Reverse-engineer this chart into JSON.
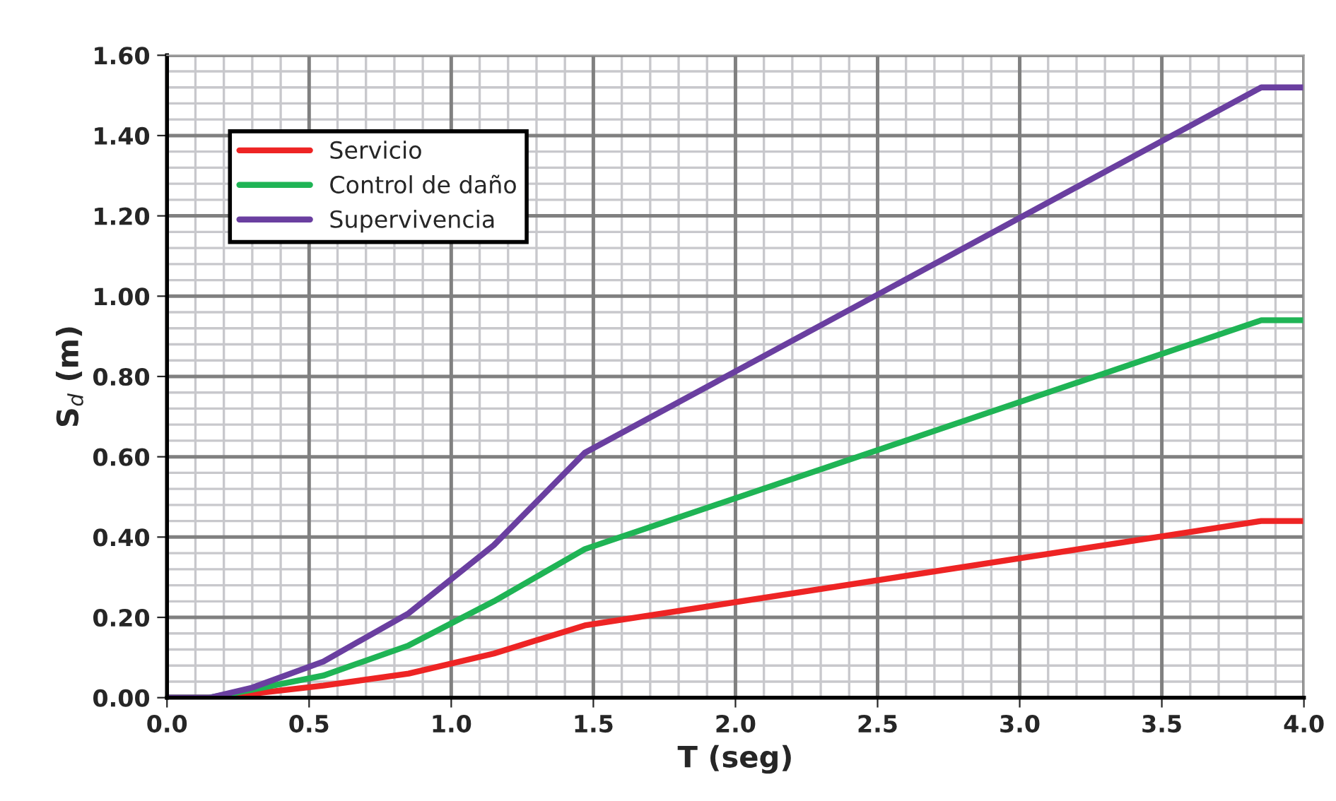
{
  "chart_data": {
    "type": "line",
    "xlabel": "T (seg)",
    "ylabel": "S$_{d}$ (m)",
    "xlim": [
      0,
      4
    ],
    "ylim": [
      0,
      1.6
    ],
    "xticks": [
      {
        "value": 0,
        "label": "0.0"
      },
      {
        "value": 0.5,
        "label": "0.5"
      },
      {
        "value": 1,
        "label": "1.0"
      },
      {
        "value": 1.5,
        "label": "1.5"
      },
      {
        "value": 2,
        "label": "2.0"
      },
      {
        "value": 2.5,
        "label": "2.5"
      },
      {
        "value": 3,
        "label": "3.0"
      },
      {
        "value": 3.5,
        "label": "3.5"
      },
      {
        "value": 4,
        "label": "4.0"
      }
    ],
    "yticks": [
      {
        "value": 0,
        "label": "0.00"
      },
      {
        "value": 0.2,
        "label": "0.20"
      },
      {
        "value": 0.4,
        "label": "0.40"
      },
      {
        "value": 0.6,
        "label": "0.60"
      },
      {
        "value": 0.8,
        "label": "0.80"
      },
      {
        "value": 1.0,
        "label": "1.00"
      },
      {
        "value": 1.2,
        "label": "1.20"
      },
      {
        "value": 1.4,
        "label": "1.40"
      },
      {
        "value": 1.6,
        "label": "1.60"
      }
    ],
    "grid": true,
    "legend": "top left",
    "marker": "none",
    "line_style": "solid",
    "x": [
      0,
      0.15,
      0.3,
      0.55,
      0.85,
      1.15,
      1.47,
      3.85,
      4.0
    ],
    "series": [
      {
        "name": "Servicio",
        "color": "#ee2424",
        "values": [
          0,
          0,
          0.01,
          0.03,
          0.06,
          0.11,
          0.18,
          0.44,
          0.44
        ]
      },
      {
        "name": "Control de daño",
        "color": "#1fb455",
        "values": [
          0,
          0,
          0.02,
          0.055,
          0.13,
          0.24,
          0.37,
          0.94,
          0.94
        ]
      },
      {
        "name": "Supervivencia",
        "color": "#6a3fa0",
        "values": [
          0,
          0,
          0.025,
          0.09,
          0.21,
          0.38,
          0.61,
          1.52,
          1.52
        ]
      }
    ]
  }
}
